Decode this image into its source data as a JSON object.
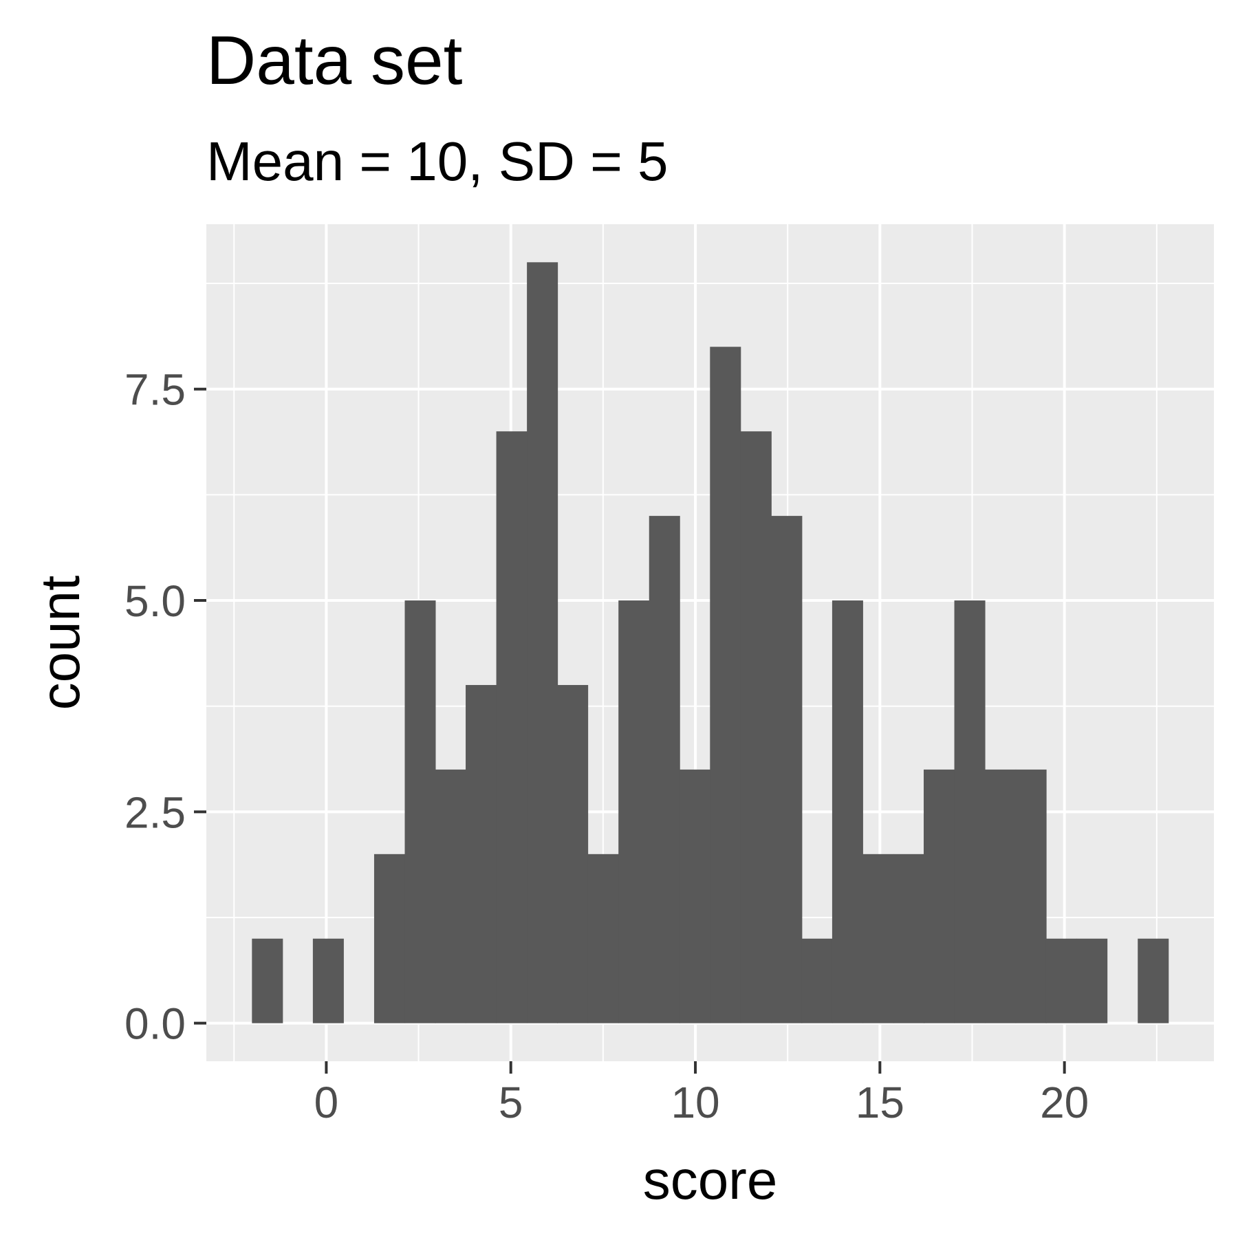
{
  "chart_data": {
    "type": "bar",
    "title": "Data set",
    "subtitle": "Mean = 10, SD = 5",
    "xlabel": "score",
    "ylabel": "count",
    "bin_width": 0.8276,
    "bins": [
      {
        "x": -1.6,
        "count": 1
      },
      {
        "x": -0.77,
        "count": 0
      },
      {
        "x": 0.05,
        "count": 1
      },
      {
        "x": 0.88,
        "count": 0
      },
      {
        "x": 1.71,
        "count": 2
      },
      {
        "x": 2.54,
        "count": 5
      },
      {
        "x": 3.36,
        "count": 3
      },
      {
        "x": 4.19,
        "count": 4
      },
      {
        "x": 5.02,
        "count": 7
      },
      {
        "x": 5.85,
        "count": 9
      },
      {
        "x": 6.67,
        "count": 4
      },
      {
        "x": 7.5,
        "count": 2
      },
      {
        "x": 8.33,
        "count": 5
      },
      {
        "x": 9.16,
        "count": 6
      },
      {
        "x": 9.98,
        "count": 3
      },
      {
        "x": 10.81,
        "count": 8
      },
      {
        "x": 11.64,
        "count": 7
      },
      {
        "x": 12.47,
        "count": 6
      },
      {
        "x": 13.29,
        "count": 1
      },
      {
        "x": 14.12,
        "count": 5
      },
      {
        "x": 14.95,
        "count": 2
      },
      {
        "x": 15.78,
        "count": 2
      },
      {
        "x": 16.6,
        "count": 3
      },
      {
        "x": 17.43,
        "count": 5
      },
      {
        "x": 18.26,
        "count": 3
      },
      {
        "x": 19.09,
        "count": 3
      },
      {
        "x": 19.91,
        "count": 1
      },
      {
        "x": 20.74,
        "count": 1
      },
      {
        "x": 21.57,
        "count": 0
      },
      {
        "x": 22.4,
        "count": 1
      }
    ],
    "xlim": [
      -3.25,
      24.05
    ],
    "ylim": [
      -0.45,
      9.45
    ],
    "x_ticks": [
      0,
      5,
      10,
      15,
      20
    ],
    "x_tick_labels": [
      "0",
      "5",
      "10",
      "15",
      "20"
    ],
    "y_ticks": [
      0,
      2.5,
      5,
      7.5
    ],
    "y_tick_labels": [
      "0.0",
      "2.5",
      "5.0",
      "7.5"
    ],
    "grid": true,
    "colors": {
      "panel_background": "#ebebeb",
      "grid": "#ffffff",
      "bar_fill": "#595959",
      "tick": "#333333",
      "tick_label": "#4d4d4d"
    }
  }
}
